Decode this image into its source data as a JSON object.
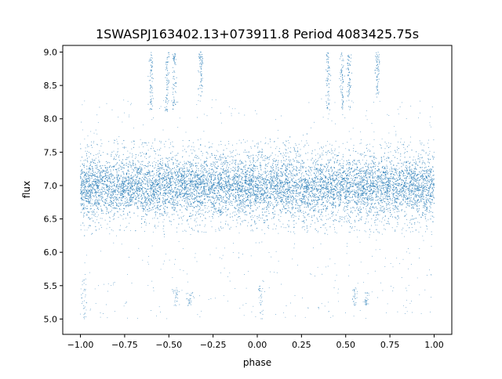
{
  "chart_data": {
    "type": "scatter",
    "title": "1SWASPJ163402.13+073911.8 Period 4083425.75s",
    "xlabel": "phase",
    "ylabel": "flux",
    "xlim": [
      -1.1,
      1.1
    ],
    "ylim": [
      4.77,
      9.1
    ],
    "x_ticks": [
      -1.0,
      -0.75,
      -0.5,
      -0.25,
      0.0,
      0.25,
      0.5,
      0.75,
      1.0
    ],
    "x_tick_labels": [
      "−1.00",
      "−0.75",
      "−0.50",
      "−0.25",
      "0.00",
      "0.25",
      "0.50",
      "0.75",
      "1.00"
    ],
    "y_ticks": [
      5.0,
      5.5,
      6.0,
      6.5,
      7.0,
      7.5,
      8.0,
      8.5,
      9.0
    ],
    "y_tick_labels": [
      "5.0",
      "5.5",
      "6.0",
      "6.5",
      "7.0",
      "7.5",
      "8.0",
      "8.5",
      "9.0"
    ],
    "grid": false,
    "marker_color": "#1f77b4",
    "main_band": {
      "x_range": [
        -1.0,
        1.0
      ],
      "center": 6.98,
      "core_halfwidth": 0.28,
      "outer_range": [
        6.3,
        7.7
      ]
    },
    "upper_clusters": [
      {
        "x": -0.6,
        "y_range": [
          8.1,
          9.0
        ]
      },
      {
        "x": -0.51,
        "y_range": [
          8.1,
          9.0
        ]
      },
      {
        "x": -0.47,
        "y_range": [
          8.1,
          9.0
        ]
      },
      {
        "x": -0.32,
        "y_range": [
          8.3,
          9.0
        ]
      },
      {
        "x": 0.4,
        "y_range": [
          8.1,
          9.0
        ]
      },
      {
        "x": 0.48,
        "y_range": [
          8.1,
          9.0
        ]
      },
      {
        "x": 0.52,
        "y_range": [
          8.1,
          9.0
        ]
      },
      {
        "x": 0.68,
        "y_range": [
          8.3,
          9.0
        ]
      }
    ],
    "lower_clusters": [
      {
        "x": -0.46,
        "y_range": [
          5.2,
          5.5
        ]
      },
      {
        "x": -0.38,
        "y_range": [
          5.2,
          5.4
        ]
      },
      {
        "x": 0.55,
        "y_range": [
          5.2,
          5.5
        ]
      },
      {
        "x": 0.62,
        "y_range": [
          5.2,
          5.4
        ]
      },
      {
        "x": -0.98,
        "y_range": [
          5.0,
          5.6
        ]
      },
      {
        "x": 0.02,
        "y_range": [
          5.0,
          5.6
        ]
      }
    ]
  }
}
